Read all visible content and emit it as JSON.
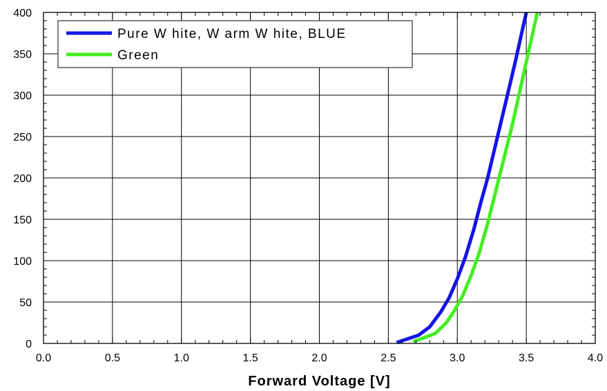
{
  "chart_data": {
    "type": "line",
    "title": "",
    "xlabel": "Forward Voltage [V]",
    "ylabel": "",
    "xlim": [
      0,
      4
    ],
    "ylim": [
      0,
      400
    ],
    "xticks": [
      "0.0",
      "0.5",
      "1.0",
      "1.5",
      "2.0",
      "2.5",
      "3.0",
      "3.5",
      "4.0"
    ],
    "yticks": [
      "0",
      "50",
      "100",
      "150",
      "200",
      "250",
      "300",
      "350",
      "400"
    ],
    "grid": true,
    "legend_position": "top-left",
    "series": [
      {
        "name": "Pure W hite, W arm W hite, BLUE",
        "color": "#1414e6",
        "x": [
          2.56,
          2.72,
          2.8,
          2.88,
          2.94,
          3.0,
          3.06,
          3.12,
          3.17,
          3.22,
          3.27,
          3.32,
          3.37,
          3.42,
          3.46,
          3.5
        ],
        "y": [
          1,
          10,
          20,
          38,
          55,
          78,
          105,
          138,
          170,
          200,
          235,
          270,
          305,
          340,
          370,
          400
        ]
      },
      {
        "name": "Green",
        "color": "#44ee22",
        "x": [
          2.68,
          2.84,
          2.92,
          2.98,
          3.04,
          3.1,
          3.16,
          3.22,
          3.28,
          3.34,
          3.4,
          3.46,
          3.52,
          3.58
        ],
        "y": [
          2,
          12,
          25,
          40,
          58,
          82,
          110,
          145,
          185,
          225,
          265,
          310,
          355,
          400
        ]
      }
    ]
  }
}
